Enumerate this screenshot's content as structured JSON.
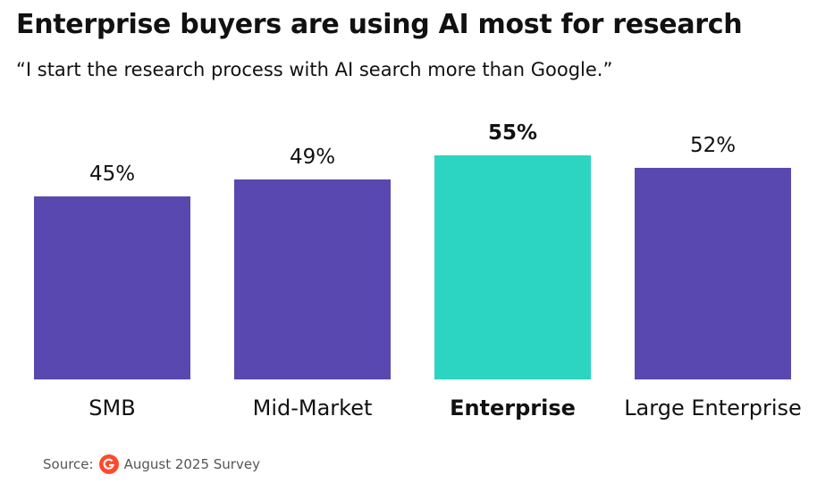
{
  "chart_data": {
    "type": "bar",
    "title": "Enterprise buyers are using AI most for research",
    "subtitle": "“I start the research process with AI search more than Google.”",
    "categories": [
      "SMB",
      "Mid-Market",
      "Enterprise",
      "Large Enterprise"
    ],
    "values": [
      45,
      49,
      55,
      52
    ],
    "value_labels": [
      "45%",
      "49%",
      "55%",
      "52%"
    ],
    "colors": [
      "#5a48b1",
      "#5a48b1",
      "#2bd5c1",
      "#5a48b1"
    ],
    "highlight": 2,
    "source_label": "Source:",
    "source": "August 2025 Survey"
  }
}
